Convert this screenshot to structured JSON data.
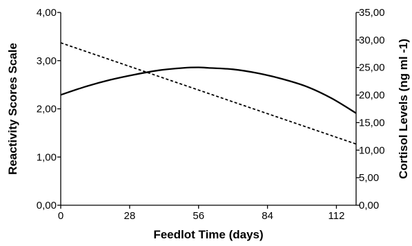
{
  "chart_data": {
    "type": "line",
    "xlabel": "Feedlot Time (days)",
    "ylabel_left": "Reactivity Scores Scale",
    "ylabel_right": "Cortisol Levels (ng ml -1)",
    "xlim": [
      0,
      120
    ],
    "ylim_left": [
      0,
      4
    ],
    "ylim_right": [
      0,
      35
    ],
    "x_ticks": [
      0,
      28,
      56,
      84,
      112
    ],
    "x_tick_labels": [
      "0",
      "28",
      "56",
      "84",
      "112"
    ],
    "y_left_ticks": [
      0,
      1,
      2,
      3,
      4
    ],
    "y_left_tick_labels": [
      "0,00",
      "1,00",
      "2,00",
      "3,00",
      "4,00"
    ],
    "y_right_ticks": [
      0,
      5,
      10,
      15,
      20,
      25,
      30,
      35
    ],
    "y_right_tick_labels": [
      "0,00",
      "5,00",
      "10,00",
      "15,00",
      "20,00",
      "25,00",
      "30,00",
      "35,00"
    ],
    "grid": false,
    "series": [
      {
        "axis": "left",
        "style": "solid",
        "x": [
          0,
          10,
          20,
          30,
          40,
          50,
          56,
          60,
          70,
          80,
          90,
          100,
          110,
          120
        ],
        "values": [
          2.29,
          2.46,
          2.6,
          2.71,
          2.8,
          2.85,
          2.86,
          2.85,
          2.82,
          2.74,
          2.62,
          2.46,
          2.22,
          1.91
        ]
      },
      {
        "axis": "left",
        "style": "dashed",
        "x": [
          0,
          120
        ],
        "values": [
          3.37,
          1.27
        ]
      }
    ]
  }
}
